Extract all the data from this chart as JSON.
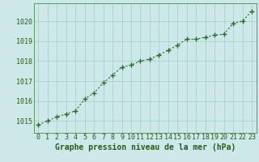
{
  "x": [
    0,
    1,
    2,
    3,
    4,
    5,
    6,
    7,
    8,
    9,
    10,
    11,
    12,
    13,
    14,
    15,
    16,
    17,
    18,
    19,
    20,
    21,
    22,
    23
  ],
  "y": [
    1014.8,
    1015.0,
    1015.2,
    1015.35,
    1015.5,
    1016.1,
    1016.4,
    1016.9,
    1017.3,
    1017.7,
    1017.8,
    1018.0,
    1018.1,
    1018.3,
    1018.55,
    1018.8,
    1019.1,
    1019.1,
    1019.2,
    1019.3,
    1019.35,
    1019.9,
    1020.0,
    1020.5
  ],
  "line_color": "#2d6a2d",
  "marker": "+",
  "marker_size": 4,
  "marker_color": "#2d6a2d",
  "bg_color": "#cce8e8",
  "grid_color": "#aacccc",
  "ylabel_values": [
    1015,
    1016,
    1017,
    1018,
    1019,
    1020
  ],
  "xlabel_values": [
    0,
    1,
    2,
    3,
    4,
    5,
    6,
    7,
    8,
    9,
    10,
    11,
    12,
    13,
    14,
    15,
    16,
    17,
    18,
    19,
    20,
    21,
    22,
    23
  ],
  "xlabel": "Graphe pression niveau de la mer (hPa)",
  "xlabel_color": "#2d5a1a",
  "xlabel_fontsize": 7,
  "tick_color": "#2d5a1a",
  "tick_fontsize": 6,
  "ylim": [
    1014.4,
    1020.9
  ],
  "xlim": [
    -0.5,
    23.5
  ],
  "line_width": 0.8,
  "axis_color": "#5a9a5a"
}
